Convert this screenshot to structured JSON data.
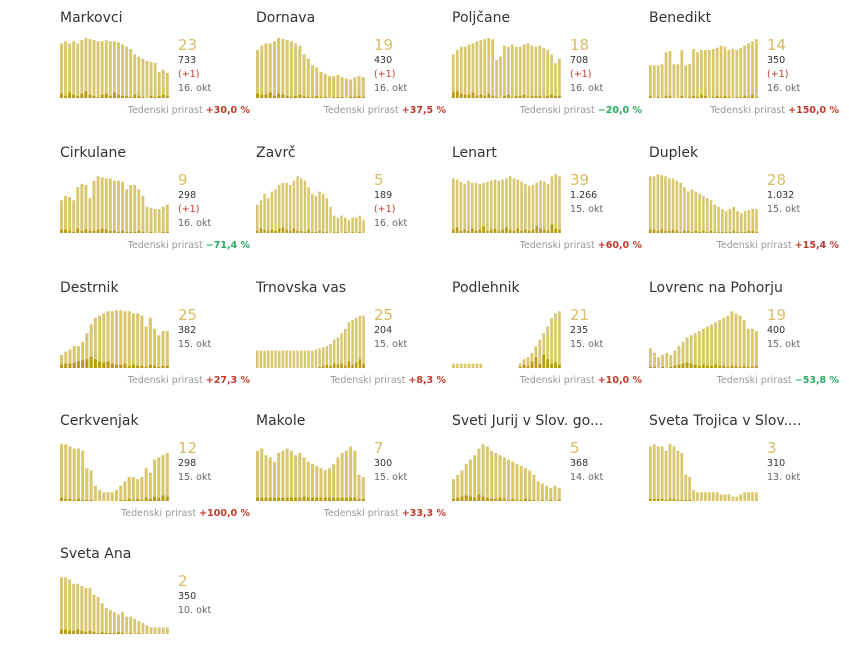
{
  "colors": {
    "bar_light": "#d9c76e",
    "bar_dark": "#b99a12",
    "big_number": "#d7bd63",
    "increase": "#c0392b",
    "decrease": "#27ae60"
  },
  "growth_label": "Tedenski prirast",
  "chart_data": [
    {
      "type": "bar",
      "title": "Markovci",
      "active": "23",
      "total": "733",
      "change": "(+1)",
      "date": "16. okt",
      "growth": "+30,0 %",
      "growth_sign": "pos",
      "values": [
        50,
        52,
        50,
        52,
        50,
        53,
        55,
        54,
        53,
        52,
        52,
        53,
        52,
        52,
        51,
        49,
        47,
        45,
        40,
        38,
        36,
        34,
        33,
        32,
        24,
        26,
        23
      ],
      "new_cases": [
        4,
        2,
        5,
        3,
        2,
        4,
        6,
        3,
        2,
        1,
        3,
        4,
        2,
        5,
        3,
        2,
        2,
        1,
        3,
        2,
        1,
        0,
        2,
        1,
        2,
        3,
        2
      ]
    },
    {
      "type": "bar",
      "title": "Dornava",
      "active": "19",
      "total": "430",
      "change": "(+1)",
      "date": "16. okt",
      "growth": "+37,5 %",
      "growth_sign": "pos",
      "values": [
        44,
        48,
        50,
        50,
        52,
        55,
        54,
        53,
        52,
        50,
        48,
        40,
        36,
        30,
        28,
        24,
        22,
        20,
        20,
        21,
        19,
        18,
        17,
        19,
        20,
        19
      ],
      "new_cases": [
        4,
        3,
        3,
        5,
        2,
        4,
        3,
        2,
        1,
        2,
        3,
        2,
        1,
        1,
        2,
        1,
        1,
        0,
        1,
        1,
        1,
        0,
        1,
        1,
        2,
        1
      ]
    },
    {
      "type": "bar",
      "title": "Poljčane",
      "active": "18",
      "total": "708",
      "change": "(+1)",
      "date": "16. okt",
      "growth": "−20,0 %",
      "growth_sign": "neg",
      "values": [
        40,
        44,
        47,
        47,
        49,
        50,
        52,
        53,
        54,
        55,
        54,
        35,
        38,
        48,
        47,
        49,
        47,
        47,
        49,
        50,
        48,
        47,
        48,
        46,
        44,
        40,
        32,
        36
      ],
      "new_cases": [
        5,
        6,
        4,
        3,
        3,
        5,
        2,
        3,
        2,
        4,
        2,
        1,
        0,
        2,
        3,
        1,
        2,
        2,
        3,
        1,
        2,
        2,
        2,
        1,
        2,
        3,
        2,
        2
      ]
    },
    {
      "type": "bar",
      "title": "Benedikt",
      "active": "14",
      "total": "350",
      "change": "(+1)",
      "date": "16. okt",
      "growth": "+150,0 %",
      "growth_sign": "pos",
      "values": [
        30,
        30,
        30,
        31,
        42,
        43,
        31,
        31,
        44,
        30,
        31,
        45,
        42,
        44,
        44,
        44,
        45,
        46,
        48,
        47,
        44,
        45,
        44,
        46,
        48,
        50,
        52,
        54
      ],
      "new_cases": [
        2,
        0,
        1,
        0,
        2,
        2,
        0,
        0,
        2,
        0,
        1,
        2,
        1,
        3,
        2,
        0,
        1,
        2,
        1,
        2,
        1,
        0,
        1,
        1,
        2,
        1,
        3,
        1
      ]
    },
    {
      "type": "bar",
      "title": "Cirkulane",
      "active": "9",
      "total": "298",
      "change": "(+1)",
      "date": "16. okt",
      "growth": "−71,4 %",
      "growth_sign": "neg",
      "values": [
        30,
        34,
        33,
        30,
        42,
        45,
        44,
        32,
        48,
        52,
        51,
        50,
        50,
        48,
        48,
        47,
        40,
        44,
        44,
        40,
        34,
        24,
        23,
        22,
        22,
        24,
        26
      ],
      "new_cases": [
        3,
        3,
        2,
        1,
        4,
        2,
        3,
        2,
        2,
        3,
        4,
        3,
        2,
        2,
        1,
        2,
        1,
        1,
        1,
        2,
        1,
        0,
        1,
        0,
        0,
        1,
        1
      ]
    },
    {
      "type": "bar",
      "title": "Zavrč",
      "active": "5",
      "total": "189",
      "change": "(+1)",
      "date": "16. okt",
      "growth": "",
      "growth_sign": "pos",
      "values": [
        26,
        30,
        36,
        32,
        38,
        40,
        44,
        46,
        46,
        44,
        48,
        52,
        50,
        48,
        42,
        36,
        34,
        38,
        36,
        32,
        24,
        16,
        14,
        16,
        14,
        12,
        14,
        14,
        16,
        12
      ],
      "new_cases": [
        2,
        4,
        3,
        2,
        3,
        2,
        4,
        5,
        3,
        2,
        4,
        2,
        2,
        1,
        3,
        1,
        1,
        2,
        1,
        1,
        0,
        1,
        1,
        0,
        1,
        0,
        1,
        0,
        1,
        0
      ]
    },
    {
      "type": "bar",
      "title": "Lenart",
      "active": "39",
      "total": "1.266",
      "change": "",
      "date": "15. okt",
      "growth": "+60,0 %",
      "growth_sign": "pos",
      "values": [
        50,
        49,
        47,
        45,
        48,
        46,
        46,
        45,
        46,
        47,
        48,
        49,
        48,
        49,
        50,
        52,
        50,
        49,
        47,
        45,
        43,
        44,
        46,
        48,
        47,
        45,
        52,
        54,
        52
      ],
      "new_cases": [
        3,
        5,
        2,
        3,
        2,
        4,
        2,
        3,
        6,
        2,
        3,
        4,
        2,
        3,
        5,
        3,
        2,
        4,
        2,
        3,
        2,
        3,
        6,
        4,
        3,
        2,
        8,
        4,
        3
      ]
    },
    {
      "type": "bar",
      "title": "Duplek",
      "active": "28",
      "total": "1.032",
      "change": "",
      "date": "15. okt",
      "growth": "+15,4 %",
      "growth_sign": "pos",
      "values": [
        52,
        52,
        54,
        53,
        52,
        50,
        50,
        48,
        46,
        42,
        38,
        40,
        38,
        36,
        34,
        32,
        30,
        26,
        24,
        22,
        20,
        22,
        24,
        20,
        18,
        20,
        21,
        22,
        22
      ],
      "new_cases": [
        3,
        3,
        2,
        3,
        2,
        2,
        3,
        2,
        1,
        2,
        2,
        1,
        2,
        1,
        2,
        1,
        2,
        1,
        1,
        1,
        1,
        1,
        2,
        1,
        1,
        1,
        2,
        2,
        1
      ]
    },
    {
      "type": "bar",
      "title": "Destrnik",
      "active": "25",
      "total": "382",
      "change": "",
      "date": "15. okt",
      "growth": "+27,3 %",
      "growth_sign": "pos",
      "values": [
        12,
        15,
        17,
        20,
        20,
        24,
        32,
        40,
        46,
        48,
        50,
        52,
        52,
        53,
        53,
        52,
        52,
        50,
        50,
        48,
        38,
        46,
        36,
        30,
        34,
        34
      ],
      "new_cases": [
        3,
        4,
        4,
        5,
        6,
        7,
        8,
        10,
        8,
        6,
        5,
        6,
        4,
        3,
        3,
        4,
        2,
        3,
        2,
        2,
        1,
        3,
        2,
        1,
        2,
        2
      ]
    },
    {
      "type": "bar",
      "title": "Trnovska vas",
      "active": "25",
      "total": "204",
      "change": "",
      "date": "15. okt",
      "growth": "+8,3 %",
      "growth_sign": "pos",
      "values": [
        16,
        16,
        16,
        16,
        16,
        16,
        16,
        16,
        16,
        16,
        16,
        16,
        16,
        16,
        16,
        16,
        17,
        18,
        19,
        20,
        22,
        26,
        28,
        32,
        36,
        42,
        44,
        46,
        48,
        48
      ],
      "new_cases": [
        0,
        0,
        0,
        0,
        0,
        0,
        0,
        0,
        0,
        0,
        0,
        0,
        0,
        0,
        0,
        0,
        0,
        1,
        2,
        3,
        2,
        4,
        3,
        4,
        2,
        6,
        3,
        5,
        8,
        4
      ]
    },
    {
      "type": "bar",
      "title": "Podlehnik",
      "active": "21",
      "total": "235",
      "change": "",
      "date": "15. okt",
      "growth": "+10,0 %",
      "growth_sign": "pos",
      "values": [
        4,
        4,
        4,
        4,
        4,
        4,
        4,
        4,
        0,
        0,
        0,
        0,
        0,
        0,
        0,
        0,
        0,
        4,
        8,
        10,
        14,
        20,
        26,
        32,
        38,
        46,
        50,
        52
      ],
      "new_cases": [
        0,
        0,
        0,
        0,
        0,
        0,
        0,
        0,
        0,
        0,
        0,
        0,
        0,
        0,
        0,
        0,
        0,
        1,
        3,
        2,
        6,
        10,
        4,
        12,
        8,
        4,
        5,
        3
      ]
    },
    {
      "type": "bar",
      "title": "Lovrenc na Pohorju",
      "active": "19",
      "total": "400",
      "change": "",
      "date": "15. okt",
      "growth": "−53,8 %",
      "growth_sign": "neg",
      "values": [
        18,
        14,
        10,
        12,
        14,
        12,
        16,
        20,
        24,
        28,
        30,
        32,
        34,
        36,
        38,
        40,
        42,
        44,
        46,
        48,
        52,
        50,
        48,
        44,
        36,
        36,
        34
      ],
      "new_cases": [
        1,
        1,
        0,
        1,
        0,
        1,
        2,
        3,
        4,
        5,
        4,
        3,
        2,
        3,
        2,
        2,
        3,
        2,
        2,
        1,
        2,
        2,
        1,
        2,
        1,
        1,
        2
      ]
    },
    {
      "type": "bar",
      "title": "Cerkvenjak",
      "active": "12",
      "total": "298",
      "change": "",
      "date": "15. okt",
      "growth": "+100,0 %",
      "growth_sign": "pos",
      "values": [
        52,
        52,
        50,
        48,
        48,
        46,
        30,
        28,
        14,
        10,
        8,
        8,
        8,
        10,
        14,
        18,
        22,
        22,
        20,
        22,
        30,
        26,
        38,
        40,
        42,
        44
      ],
      "new_cases": [
        3,
        2,
        2,
        1,
        2,
        1,
        1,
        1,
        0,
        0,
        0,
        0,
        0,
        0,
        1,
        1,
        2,
        1,
        2,
        1,
        3,
        2,
        4,
        3,
        5,
        4
      ]
    },
    {
      "type": "bar",
      "title": "Makole",
      "active": "7",
      "total": "300",
      "change": "",
      "date": "15. okt",
      "growth": "+33,3 %",
      "growth_sign": "pos",
      "values": [
        46,
        48,
        42,
        40,
        36,
        44,
        46,
        48,
        46,
        42,
        44,
        40,
        36,
        34,
        32,
        30,
        28,
        30,
        34,
        40,
        44,
        46,
        50,
        46,
        24,
        22
      ],
      "new_cases": [
        3,
        3,
        3,
        3,
        3,
        3,
        3,
        3,
        3,
        3,
        3,
        4,
        3,
        3,
        3,
        3,
        3,
        3,
        3,
        3,
        3,
        3,
        3,
        3,
        2,
        2
      ]
    },
    {
      "type": "bar",
      "title": "Sveti Jurij v Slov. go...",
      "active": "5",
      "total": "368",
      "change": "",
      "date": "14. okt",
      "growth": "",
      "growth_sign": "pos",
      "values": [
        20,
        24,
        28,
        34,
        38,
        42,
        48,
        52,
        50,
        46,
        44,
        42,
        40,
        38,
        36,
        34,
        32,
        30,
        28,
        24,
        18,
        16,
        14,
        12,
        14,
        12
      ],
      "new_cases": [
        2,
        3,
        4,
        5,
        4,
        3,
        6,
        4,
        3,
        2,
        2,
        3,
        2,
        1,
        2,
        1,
        1,
        2,
        1,
        1,
        0,
        1,
        0,
        1,
        0,
        1
      ]
    },
    {
      "type": "bar",
      "title": "Sveta Trojica v Slov....",
      "active": "3",
      "total": "310",
      "change": "",
      "date": "13. okt",
      "growth": "",
      "growth_sign": "pos",
      "values": [
        50,
        52,
        50,
        50,
        46,
        52,
        50,
        46,
        44,
        24,
        22,
        10,
        8,
        8,
        8,
        8,
        8,
        8,
        6,
        6,
        6,
        4,
        4,
        6,
        8,
        8,
        8,
        8
      ],
      "new_cases": [
        2,
        2,
        2,
        2,
        1,
        2,
        2,
        1,
        1,
        1,
        1,
        0,
        0,
        0,
        0,
        0,
        0,
        0,
        0,
        0,
        0,
        0,
        0,
        0,
        0,
        0,
        0,
        0
      ]
    },
    {
      "type": "bar",
      "title": "Sveta Ana",
      "active": "2",
      "total": "350",
      "change": "",
      "date": "10. okt",
      "growth": "",
      "growth_sign": "pos",
      "values": [
        52,
        52,
        50,
        46,
        46,
        44,
        42,
        42,
        36,
        34,
        28,
        24,
        22,
        20,
        18,
        20,
        16,
        16,
        14,
        12,
        10,
        8,
        6,
        6,
        6,
        6,
        6
      ],
      "new_cases": [
        4,
        4,
        3,
        3,
        4,
        3,
        2,
        3,
        2,
        1,
        2,
        1,
        1,
        1,
        2,
        1,
        0,
        1,
        0,
        1,
        0,
        0,
        0,
        0,
        0,
        0,
        0
      ]
    }
  ]
}
